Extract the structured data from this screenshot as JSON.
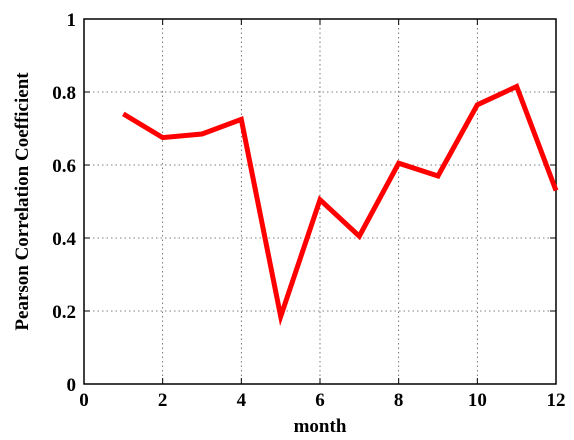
{
  "chart_data": {
    "type": "line",
    "title": "",
    "xlabel": "month",
    "ylabel": "Pearson Correlation Coefficient",
    "xlim": [
      0,
      12
    ],
    "ylim": [
      0,
      1
    ],
    "xticks": [
      "0",
      "2",
      "4",
      "6",
      "8",
      "10",
      "12"
    ],
    "yticks": [
      "0",
      "0.2",
      "0.4",
      "0.6",
      "0.8",
      "1"
    ],
    "grid": true,
    "x": [
      1,
      2,
      3,
      4,
      5,
      6,
      7,
      8,
      9,
      10,
      11,
      12
    ],
    "series": [
      {
        "color": "#ff0000",
        "values": [
          0.74,
          0.675,
          0.685,
          0.725,
          0.185,
          0.505,
          0.405,
          0.605,
          0.57,
          0.765,
          0.815,
          0.53
        ]
      }
    ]
  }
}
